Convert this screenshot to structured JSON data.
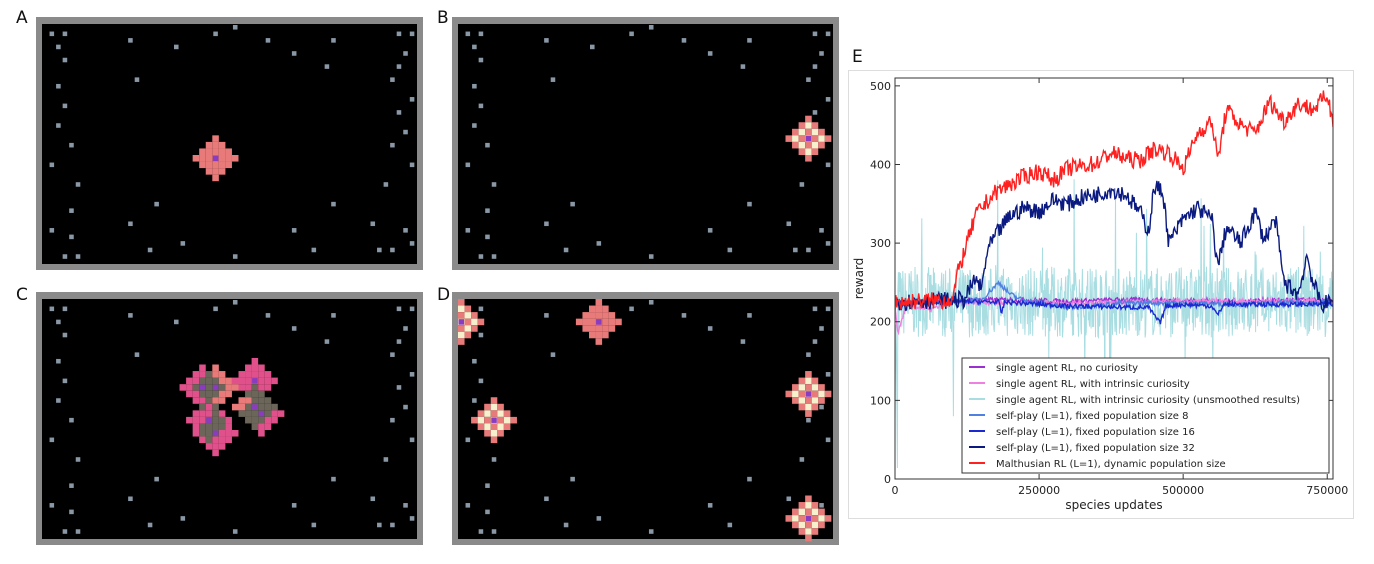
{
  "panels": [
    {
      "label": "A",
      "agents": [
        {
          "col": 26,
          "row": 20,
          "style": "solo"
        }
      ]
    },
    {
      "label": "B",
      "agents": [
        {
          "col": 53,
          "row": 17,
          "style": "bright"
        }
      ]
    },
    {
      "label": "C",
      "agents": [
        {
          "col": 24,
          "row": 13,
          "style": "pink"
        },
        {
          "col": 26,
          "row": 13,
          "style": "solo"
        },
        {
          "col": 32,
          "row": 12,
          "style": "pink"
        },
        {
          "col": 32,
          "row": 16,
          "style": "solo"
        },
        {
          "col": 33,
          "row": 17,
          "style": "pink"
        },
        {
          "col": 25,
          "row": 18,
          "style": "pink"
        },
        {
          "col": 26,
          "row": 20,
          "style": "pink"
        }
      ]
    },
    {
      "label": "D",
      "agents": [
        {
          "col": 0,
          "row": 3,
          "style": "bright"
        },
        {
          "col": 21,
          "row": 3,
          "style": "solo"
        },
        {
          "col": 5,
          "row": 18,
          "style": "bright"
        },
        {
          "col": 53,
          "row": 14,
          "style": "bright"
        },
        {
          "col": 53,
          "row": 33,
          "style": "bright"
        }
      ]
    }
  ],
  "grid": {
    "cols": 57,
    "rows": 37,
    "pellets": [
      [
        1,
        1
      ],
      [
        3,
        1
      ],
      [
        26,
        1
      ],
      [
        29,
        0
      ],
      [
        54,
        1
      ],
      [
        56,
        1
      ],
      [
        13,
        2
      ],
      [
        34,
        2
      ],
      [
        44,
        2
      ],
      [
        2,
        3
      ],
      [
        20,
        3
      ],
      [
        55,
        4
      ],
      [
        38,
        4
      ],
      [
        3,
        5
      ],
      [
        43,
        6
      ],
      [
        54,
        6
      ],
      [
        14,
        8
      ],
      [
        53,
        8
      ],
      [
        2,
        9
      ],
      [
        56,
        11
      ],
      [
        3,
        12
      ],
      [
        54,
        13
      ],
      [
        2,
        15
      ],
      [
        55,
        16
      ],
      [
        4,
        18
      ],
      [
        53,
        18
      ],
      [
        1,
        21
      ],
      [
        56,
        21
      ],
      [
        5,
        24
      ],
      [
        52,
        24
      ],
      [
        17,
        27
      ],
      [
        44,
        27
      ],
      [
        4,
        28
      ],
      [
        13,
        30
      ],
      [
        50,
        30
      ],
      [
        1,
        31
      ],
      [
        38,
        31
      ],
      [
        55,
        31
      ],
      [
        4,
        32
      ],
      [
        21,
        33
      ],
      [
        56,
        33
      ],
      [
        16,
        34
      ],
      [
        41,
        34
      ],
      [
        51,
        34
      ],
      [
        53,
        34
      ],
      [
        3,
        35
      ],
      [
        5,
        35
      ],
      [
        29,
        35
      ]
    ]
  },
  "colors": {
    "border": "#8a8a8a",
    "background": "#000000",
    "pellet": "#8a98a6",
    "salmon": "#e87a7a",
    "pink": "#e0508a",
    "overlap": "#6b6659",
    "cream": "#f6f1cc",
    "core": "#8a3cc0"
  },
  "chart_data": {
    "panel_label": "E",
    "type": "line",
    "xlabel": "species updates",
    "ylabel": "reward",
    "xlim": [
      0,
      760000
    ],
    "ylim": [
      0,
      510
    ],
    "xticks": [
      0,
      250000,
      500000,
      750000
    ],
    "xtick_labels": [
      "0",
      "250000",
      "500000",
      "750000"
    ],
    "yticks": [
      0,
      100,
      200,
      300,
      400,
      500
    ],
    "ytick_labels": [
      "0",
      "100",
      "200",
      "300",
      "400",
      "500"
    ],
    "legend_placement": "lower-right",
    "series": [
      {
        "name": "single agent RL, with intrinsic curiosity (unsmoothed results)",
        "color": "#a8dde2",
        "noisy": true,
        "band": [
          180,
          270
        ],
        "x": [
          0,
          760000
        ],
        "y": [
          225,
          225
        ]
      },
      {
        "name": "single agent RL, no curiosity",
        "color": "#9a30d0",
        "x": [
          0,
          100000,
          200000,
          300000,
          400000,
          500000,
          600000,
          700000,
          760000
        ],
        "y": [
          222,
          227,
          228,
          226,
          228,
          227,
          226,
          228,
          226
        ]
      },
      {
        "name": "single agent RL, with intrinsic curiosity",
        "color": "#f080e0",
        "x": [
          0,
          5000,
          20000,
          60000,
          100000,
          300000,
          500000,
          700000,
          760000
        ],
        "y": [
          220,
          185,
          222,
          215,
          225,
          224,
          226,
          226,
          228
        ]
      },
      {
        "name": "self-play (L=1), fixed population size 8",
        "color": "#5080e0",
        "x": [
          0,
          100000,
          150000,
          180000,
          200000,
          220000,
          300000,
          400000,
          500000,
          600000,
          700000,
          760000
        ],
        "y": [
          225,
          226,
          228,
          250,
          235,
          228,
          218,
          224,
          224,
          222,
          225,
          224
        ]
      },
      {
        "name": "self-play (L=1), fixed population size 16",
        "color": "#1a2ad0",
        "x": [
          0,
          100000,
          180000,
          185000,
          190000,
          300000,
          440000,
          460000,
          470000,
          500000,
          550000,
          560000,
          570000,
          700000,
          760000
        ],
        "y": [
          225,
          226,
          225,
          210,
          225,
          220,
          218,
          198,
          220,
          222,
          220,
          208,
          222,
          222,
          222
        ]
      },
      {
        "name": "self-play (L=1), fixed population size 32",
        "color": "#0a1a80",
        "x": [
          0,
          120000,
          140000,
          150000,
          160000,
          175000,
          200000,
          225000,
          250000,
          275000,
          300000,
          325000,
          350000,
          375000,
          400000,
          425000,
          440000,
          450000,
          465000,
          475000,
          500000,
          525000,
          550000,
          560000,
          575000,
          600000,
          625000,
          640000,
          660000,
          675000,
          700000,
          715000,
          725000,
          740000,
          760000
        ],
        "y": [
          225,
          228,
          255,
          240,
          290,
          310,
          335,
          345,
          340,
          355,
          350,
          358,
          362,
          368,
          362,
          340,
          315,
          372,
          365,
          300,
          330,
          345,
          330,
          270,
          320,
          300,
          340,
          305,
          330,
          250,
          235,
          285,
          250,
          222,
          225
        ]
      },
      {
        "name": "Malthusian RL (L=1), dynamic population size",
        "color": "#ff2020",
        "x": [
          0,
          100000,
          110000,
          125000,
          140000,
          150000,
          175000,
          200000,
          225000,
          250000,
          275000,
          300000,
          325000,
          350000,
          375000,
          400000,
          425000,
          450000,
          475000,
          500000,
          525000,
          550000,
          560000,
          575000,
          600000,
          625000,
          650000,
          675000,
          700000,
          725000,
          750000,
          760000
        ],
        "y": [
          225,
          228,
          265,
          300,
          335,
          345,
          365,
          375,
          385,
          392,
          380,
          395,
          398,
          402,
          415,
          408,
          405,
          420,
          415,
          395,
          440,
          455,
          405,
          470,
          450,
          440,
          480,
          455,
          478,
          470,
          488,
          455
        ]
      }
    ],
    "legend_order": [
      1,
      2,
      0,
      3,
      4,
      5,
      6
    ]
  }
}
